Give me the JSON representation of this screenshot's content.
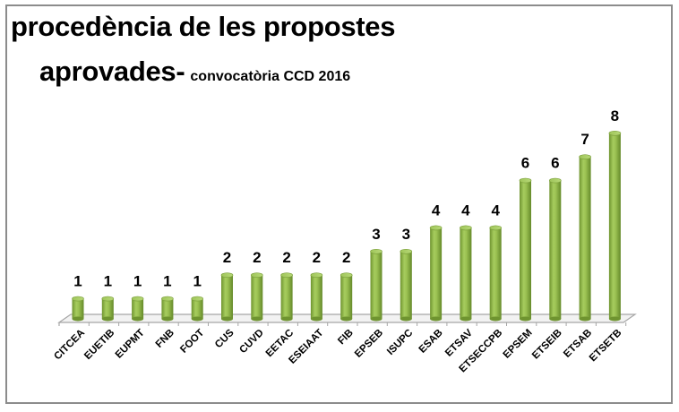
{
  "title": {
    "line1": "procedència de les propostes",
    "line2_main": "aprovades-",
    "line2_sub": "convocatòria CCD 2016"
  },
  "chart_data": {
    "type": "bar",
    "style": "3d-cylinder",
    "title": "procedència de les propostes aprovades- convocatòria CCD 2016",
    "xlabel": "",
    "ylabel": "",
    "ylim": [
      0,
      8
    ],
    "grid": false,
    "legend": "none",
    "bar_color": "#8fb84a",
    "categories": [
      "CITCEA",
      "EUETIB",
      "EUPMT",
      "FNB",
      "FOOT",
      "CUS",
      "CUVD",
      "EETAC",
      "ESEIAAT",
      "FIB",
      "EPSEB",
      "ISUPC",
      "ESAB",
      "ETSAV",
      "ETSECCPB",
      "EPSEM",
      "ETSEIB",
      "ETSAB",
      "ETSETB"
    ],
    "values": [
      1,
      1,
      1,
      1,
      1,
      2,
      2,
      2,
      2,
      2,
      3,
      3,
      4,
      4,
      4,
      6,
      6,
      7,
      8
    ],
    "data_labels": [
      "1",
      "1",
      "1",
      "1",
      "1",
      "2",
      "2",
      "2",
      "2",
      "2",
      "3",
      "3",
      "4",
      "4",
      "4",
      "6",
      "6",
      "7",
      "8"
    ]
  }
}
